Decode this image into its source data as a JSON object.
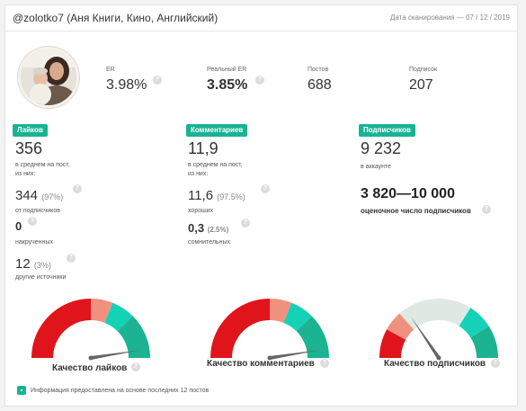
{
  "header": {
    "account_title": "@zolotko7 (Аня Книги, Кино, Английский)",
    "scan_date": "Дата сканирования — 07 / 12 / 2019"
  },
  "stats": {
    "er_label": "ER",
    "er_value": "3.98%",
    "real_er_label": "Реальный ER",
    "real_er_value": "3.85%",
    "posts_label": "Постов",
    "posts_value": "688",
    "followers_label": "Подписок",
    "followers_value": "207"
  },
  "likes": {
    "badge": "Лайков",
    "total": "356",
    "avg_note": "в среднем на пост,",
    "of_them": "из них:",
    "from_subs_value": "344",
    "from_subs_pct": "(97%)",
    "from_subs_label": "от подписчиков",
    "boosted_value": "0",
    "boosted_label": "накрученных",
    "other_value": "12",
    "other_pct": "(3%)",
    "other_label": "другие источники"
  },
  "comments": {
    "badge": "Комментариев",
    "total": "11,9",
    "avg_note": "в среднем на пост,",
    "of_them": "из них:",
    "good_value": "11,6",
    "good_pct": "(97.5%)",
    "good_label": "хороших",
    "doubtful_value": "0,3",
    "doubtful_pct": "(2.5%)",
    "doubtful_label": "сомнительных"
  },
  "subscribers": {
    "badge": "Подписчиков",
    "total": "9 232",
    "in_account": "в аккаунте",
    "estimate_range": "3 820—10 000",
    "estimate_label": "оценочное число подписчиков"
  },
  "gauges": [
    {
      "label": "Качество лайков",
      "needle_fraction": 0.95
    },
    {
      "label": "Качество комментариев",
      "needle_fraction": 0.95
    },
    {
      "label": "Качество подписчиков",
      "needle_fraction": 0.31
    }
  ],
  "colors": {
    "accent": "#19b394",
    "gauge_red": "#e0141b",
    "gauge_salmon": "#f0917f",
    "gauge_teal_light": "#15d2b6",
    "gauge_teal": "#1bb391",
    "gauge_grey": "#dfe9e3",
    "needle": "#666666"
  },
  "icons": {
    "help": "question-circle-icon",
    "info": "info-check-icon"
  },
  "help_glyph": "?",
  "footer": {
    "note": "Информация предоставлена на основе последних 12 постов"
  }
}
